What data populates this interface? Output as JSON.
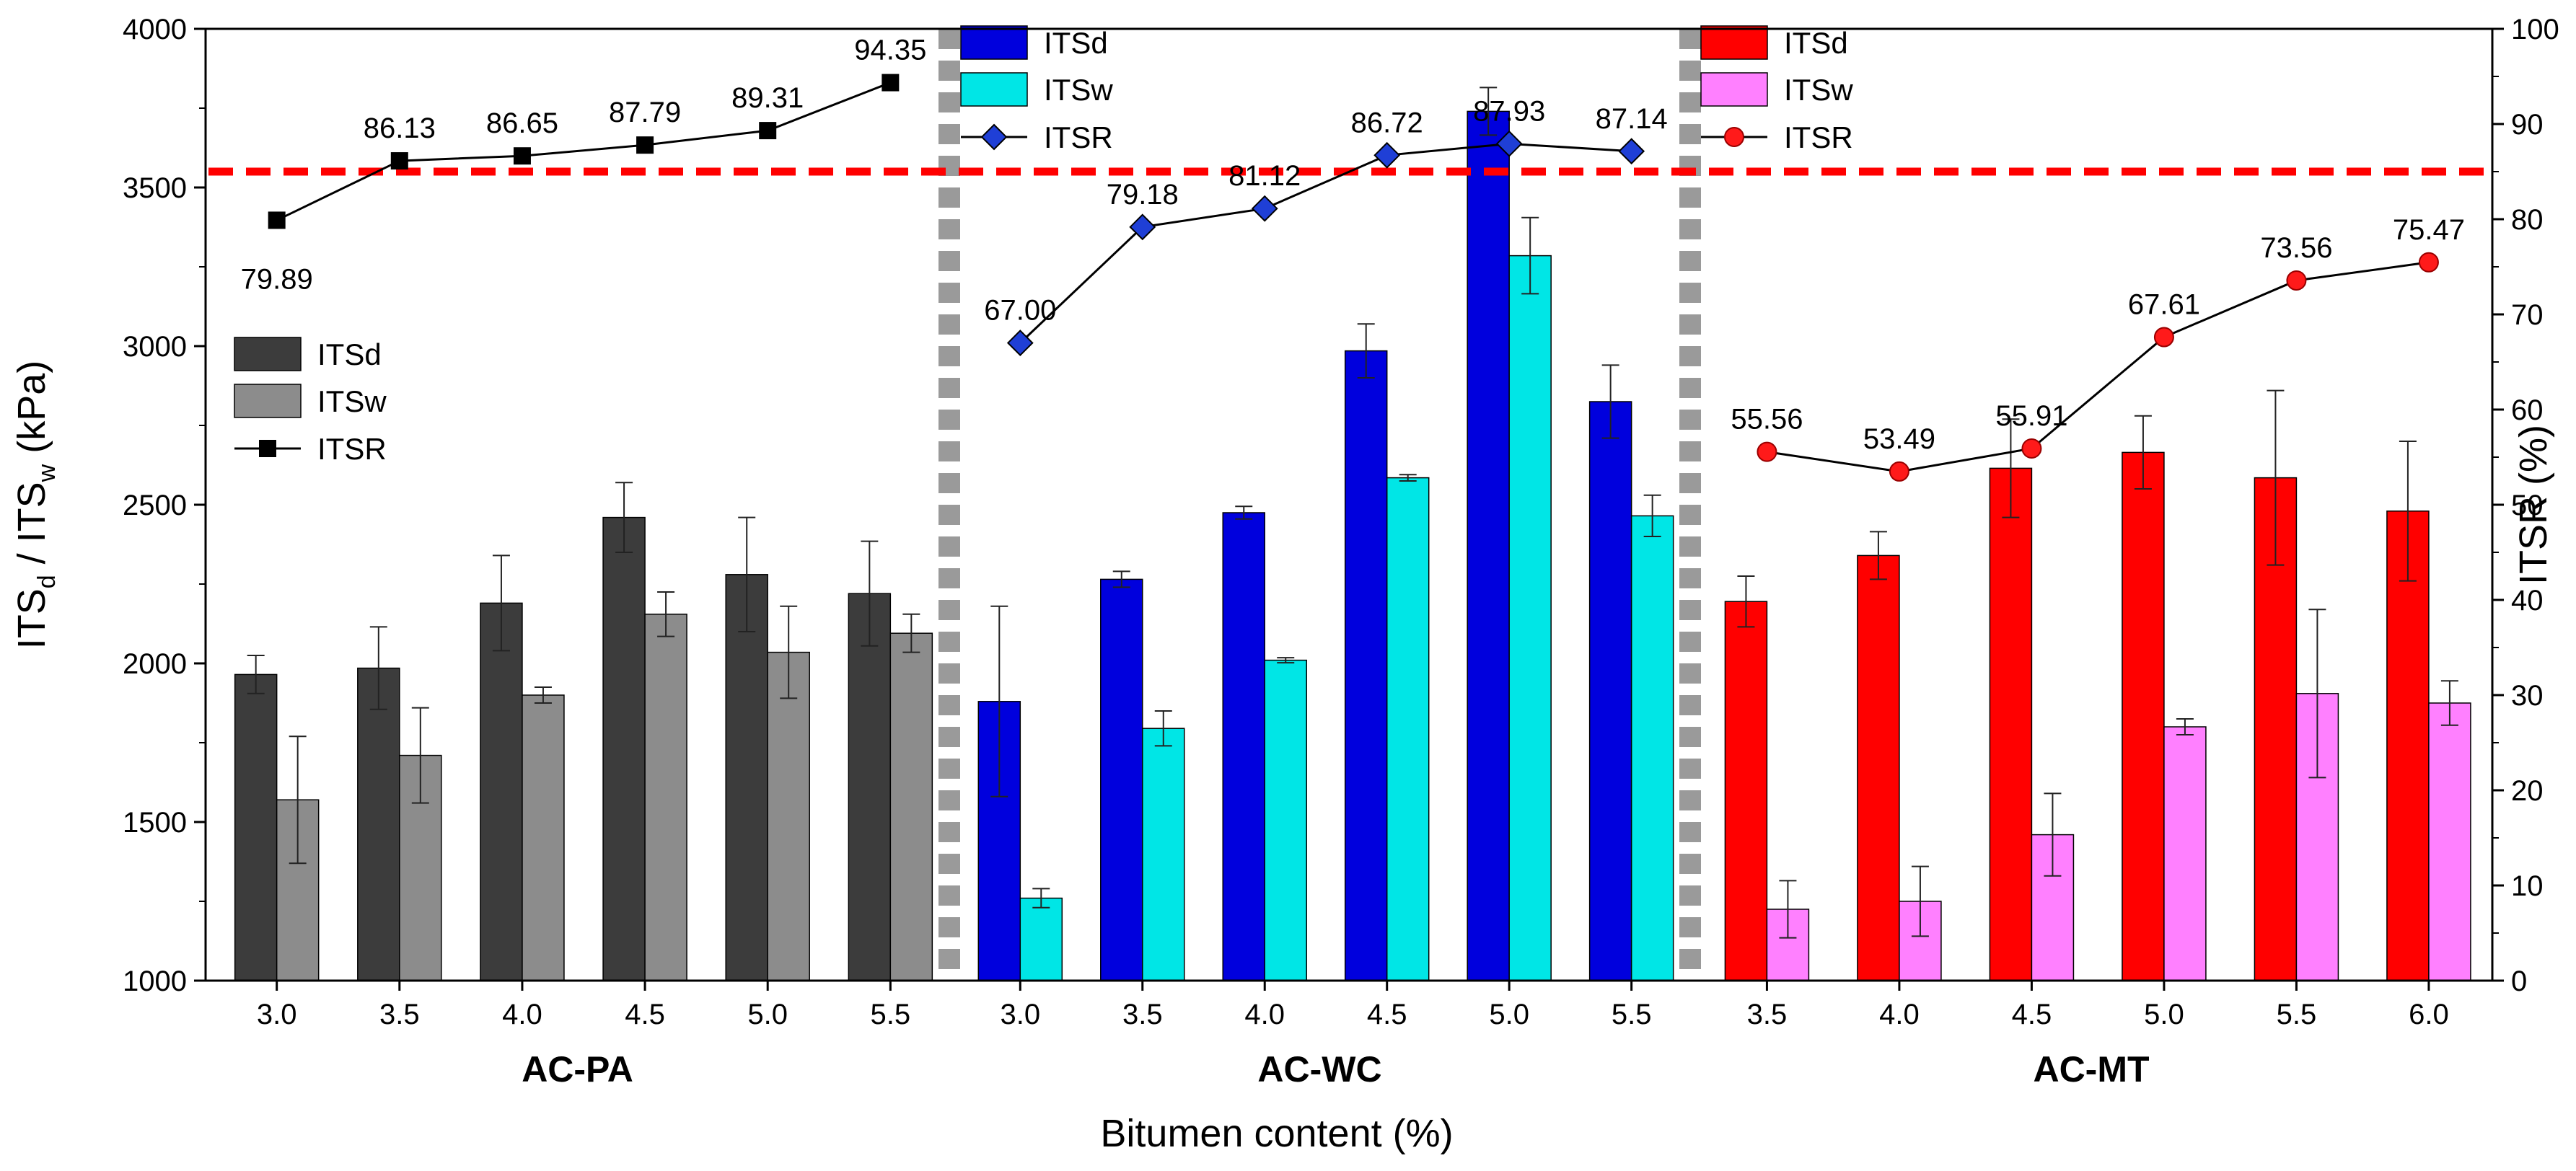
{
  "chart_data": {
    "type": "bar",
    "title": "",
    "xlabel": "Bitumen content (%)",
    "ylabel_left": "ITS",
    "ylabel_left_sub1": "d",
    "ylabel_left_mid": " / ITS",
    "ylabel_left_sub2": "w",
    "ylabel_left_unit": " (kPa)",
    "ylabel_right": "ITSR (%)",
    "ylim_left": [
      1000,
      4000
    ],
    "ylim_right": [
      0,
      100
    ],
    "yticks_left": [
      "1000",
      "1500",
      "2000",
      "2500",
      "3000",
      "3500",
      "4000"
    ],
    "yticks_right": [
      "0",
      "10",
      "20",
      "30",
      "40",
      "50",
      "60",
      "70",
      "80",
      "90",
      "100"
    ],
    "threshold_itsr": 85,
    "panels": [
      {
        "name": "AC-PA",
        "categories": [
          "3.0",
          "3.5",
          "4.0",
          "4.5",
          "5.0",
          "5.5"
        ],
        "colors": {
          "dry": "#3c3c3c",
          "wet": "#8c8c8c",
          "line": "#000000"
        },
        "marker": "square",
        "legend": {
          "dry": "ITSd",
          "wet": "ITSw",
          "ratio": "ITSR"
        },
        "series": [
          {
            "name": "ITSd",
            "values": [
              1965,
              1985,
              2190,
              2460,
              2280,
              2220
            ],
            "errors": [
              60,
              130,
              150,
              110,
              180,
              165
            ]
          },
          {
            "name": "ITSw",
            "values": [
              1570,
              1710,
              1900,
              2155,
              2035,
              2095
            ],
            "errors": [
              200,
              150,
              25,
              70,
              145,
              60
            ]
          },
          {
            "name": "ITSR",
            "values": [
              79.89,
              86.13,
              86.65,
              87.79,
              89.31,
              94.35
            ],
            "labels": [
              "79.89",
              "86.13",
              "86.65",
              "87.79",
              "89.31",
              "94.35"
            ]
          }
        ]
      },
      {
        "name": "AC-WC",
        "categories": [
          "3.0",
          "3.5",
          "4.0",
          "4.5",
          "5.0",
          "5.5"
        ],
        "colors": {
          "dry": "#0000dd",
          "wet": "#00e6e6",
          "line": "#000000"
        },
        "marker": "diamond",
        "legend": {
          "dry": "ITSd",
          "wet": "ITSw",
          "ratio": "ITSR"
        },
        "series": [
          {
            "name": "ITSd",
            "values": [
              1880,
              2265,
              2475,
              2985,
              3740,
              2825
            ],
            "errors": [
              300,
              25,
              20,
              85,
              75,
              115
            ]
          },
          {
            "name": "ITSw",
            "values": [
              1260,
              1795,
              2010,
              2585,
              3285,
              2465
            ],
            "errors": [
              30,
              55,
              8,
              10,
              120,
              65
            ]
          },
          {
            "name": "ITSR",
            "values": [
              67.0,
              79.18,
              81.12,
              86.72,
              87.93,
              87.14
            ],
            "labels": [
              "67.00",
              "79.18",
              "81.12",
              "86.72",
              "87.93",
              "87.14"
            ]
          }
        ]
      },
      {
        "name": "AC-MT",
        "categories": [
          "3.5",
          "4.0",
          "4.5",
          "5.0",
          "5.5",
          "6.0"
        ],
        "colors": {
          "dry": "#ff0000",
          "wet": "#ff80ff",
          "line": "#000000"
        },
        "marker": "circle",
        "legend": {
          "dry": "ITSd",
          "wet": "ITSw",
          "ratio": "ITSR"
        },
        "series": [
          {
            "name": "ITSd",
            "values": [
              2195,
              2340,
              2615,
              2665,
              2585,
              2480
            ],
            "errors": [
              80,
              75,
              155,
              115,
              275,
              220
            ]
          },
          {
            "name": "ITSw",
            "values": [
              1225,
              1250,
              1460,
              1800,
              1905,
              1875
            ],
            "errors": [
              90,
              110,
              130,
              25,
              265,
              70
            ]
          },
          {
            "name": "ITSR",
            "values": [
              55.56,
              53.49,
              55.91,
              67.61,
              73.56,
              75.47
            ],
            "labels": [
              "55.56",
              "53.49",
              "55.91",
              "67.61",
              "73.56",
              "75.47"
            ]
          }
        ]
      }
    ]
  }
}
